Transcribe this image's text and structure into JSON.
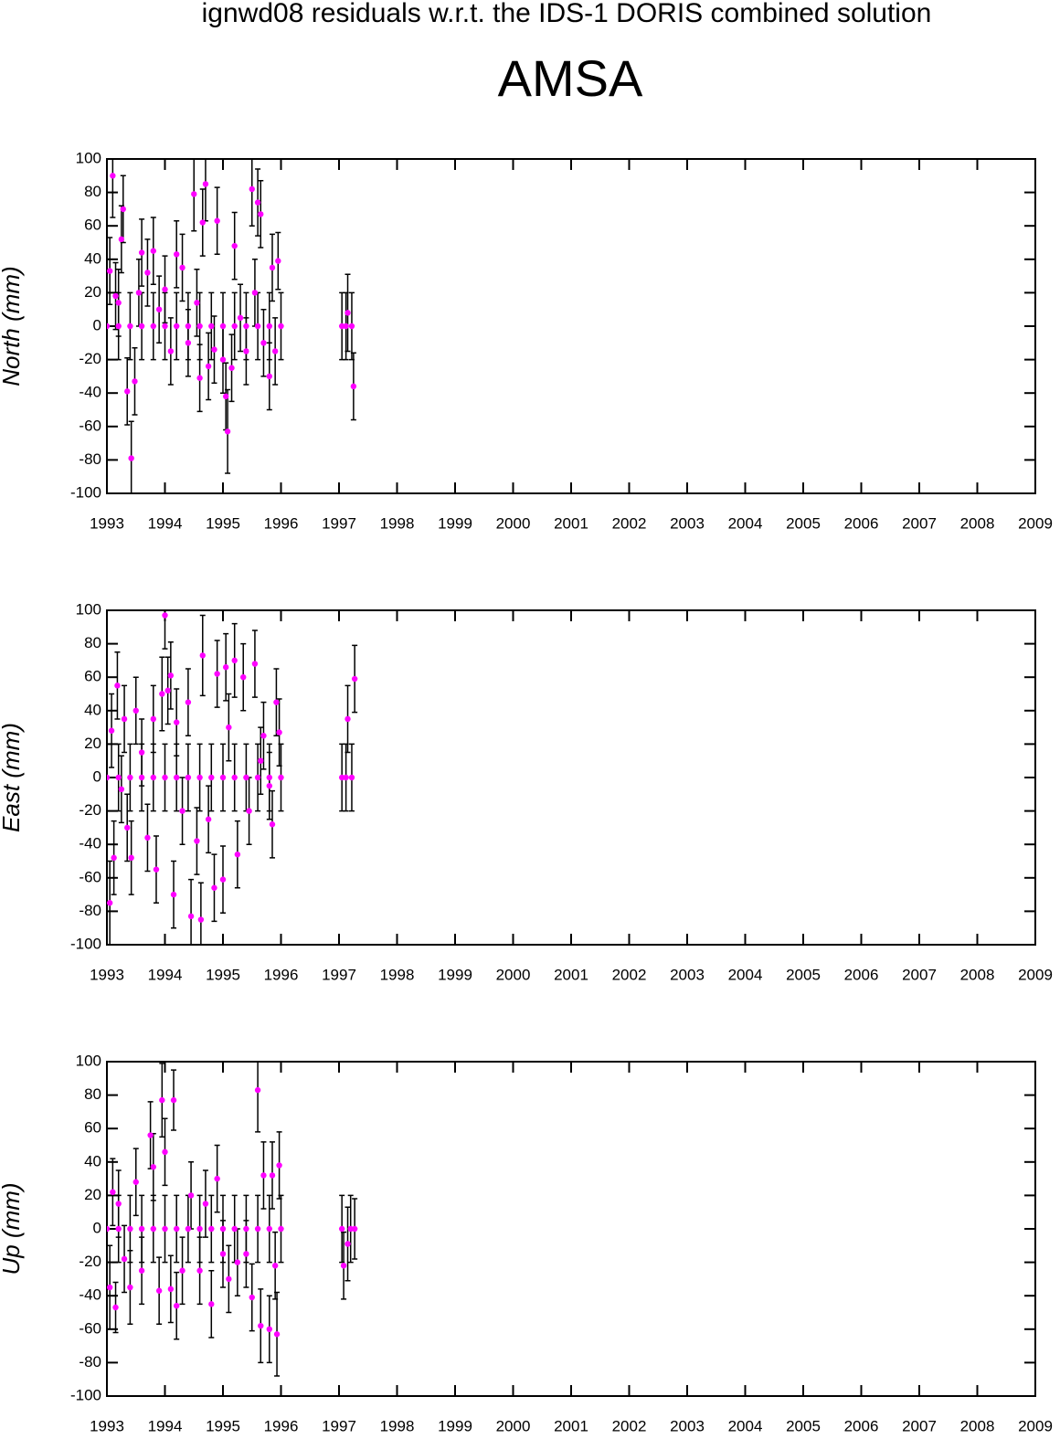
{
  "title": "ignwd08 residuals w.r.t. the IDS-1 DORIS combined solution",
  "subtitle": "AMSA",
  "chart_data": [
    {
      "type": "scatter",
      "y_label": "North (mm)",
      "color": "#ff00ff",
      "error_color": "#000000",
      "xlim": [
        1993,
        2009
      ],
      "xticks": [
        1993,
        1994,
        1995,
        1996,
        1997,
        1998,
        1999,
        2000,
        2001,
        2002,
        2003,
        2004,
        2005,
        2006,
        2007,
        2008,
        2009
      ],
      "ylim": [
        -100,
        100
      ],
      "yticks": [
        -100,
        -80,
        -60,
        -40,
        -20,
        0,
        20,
        40,
        60,
        80,
        100
      ],
      "points": [
        [
          1993.0,
          0,
          20
        ],
        [
          1993.2,
          0,
          20
        ],
        [
          1993.4,
          0,
          20
        ],
        [
          1993.6,
          0,
          20
        ],
        [
          1993.8,
          0,
          20
        ],
        [
          1994.0,
          0,
          20
        ],
        [
          1994.2,
          0,
          20
        ],
        [
          1994.4,
          0,
          20
        ],
        [
          1994.6,
          0,
          20
        ],
        [
          1994.8,
          0,
          20
        ],
        [
          1995.0,
          0,
          20
        ],
        [
          1995.2,
          0,
          20
        ],
        [
          1995.4,
          0,
          20
        ],
        [
          1995.6,
          0,
          20
        ],
        [
          1995.8,
          0,
          20
        ],
        [
          1996.0,
          0,
          20
        ],
        [
          1993.05,
          33,
          20
        ],
        [
          1993.1,
          90,
          25
        ],
        [
          1993.15,
          18,
          20
        ],
        [
          1993.2,
          14,
          20
        ],
        [
          1993.25,
          52,
          20
        ],
        [
          1993.28,
          70,
          20
        ],
        [
          1993.35,
          -39,
          20
        ],
        [
          1993.42,
          -79,
          22
        ],
        [
          1993.48,
          -33,
          20
        ],
        [
          1993.55,
          20,
          20
        ],
        [
          1993.6,
          44,
          20
        ],
        [
          1993.7,
          32,
          20
        ],
        [
          1993.8,
          45,
          20
        ],
        [
          1993.9,
          10,
          20
        ],
        [
          1994.0,
          22,
          20
        ],
        [
          1994.1,
          -15,
          20
        ],
        [
          1994.2,
          43,
          20
        ],
        [
          1994.3,
          35,
          20
        ],
        [
          1994.4,
          -10,
          20
        ],
        [
          1994.5,
          79,
          22
        ],
        [
          1994.55,
          14,
          20
        ],
        [
          1994.6,
          -31,
          20
        ],
        [
          1994.65,
          62,
          20
        ],
        [
          1994.7,
          85,
          22
        ],
        [
          1994.75,
          -24,
          20
        ],
        [
          1994.85,
          -14,
          20
        ],
        [
          1994.9,
          63,
          20
        ],
        [
          1995.0,
          -20,
          20
        ],
        [
          1995.05,
          -42,
          20
        ],
        [
          1995.08,
          -63,
          25
        ],
        [
          1995.15,
          -25,
          20
        ],
        [
          1995.2,
          48,
          20
        ],
        [
          1995.3,
          5,
          20
        ],
        [
          1995.4,
          -15,
          20
        ],
        [
          1995.5,
          82,
          22
        ],
        [
          1995.55,
          20,
          20
        ],
        [
          1995.6,
          74,
          20
        ],
        [
          1995.65,
          67,
          20
        ],
        [
          1995.7,
          -10,
          20
        ],
        [
          1995.8,
          -30,
          20
        ],
        [
          1995.85,
          35,
          20
        ],
        [
          1995.9,
          -15,
          20
        ],
        [
          1995.95,
          39,
          17
        ],
        [
          1997.05,
          0,
          20
        ],
        [
          1997.12,
          0,
          20
        ],
        [
          1997.15,
          8,
          23
        ],
        [
          1997.22,
          0,
          20
        ],
        [
          1997.25,
          -36,
          20
        ]
      ]
    },
    {
      "type": "scatter",
      "y_label": "East (mm)",
      "color": "#ff00ff",
      "error_color": "#000000",
      "xlim": [
        1993,
        2009
      ],
      "xticks": [
        1993,
        1994,
        1995,
        1996,
        1997,
        1998,
        1999,
        2000,
        2001,
        2002,
        2003,
        2004,
        2005,
        2006,
        2007,
        2008,
        2009
      ],
      "ylim": [
        -100,
        100
      ],
      "yticks": [
        -100,
        -80,
        -60,
        -40,
        -20,
        0,
        20,
        40,
        60,
        80,
        100
      ],
      "points": [
        [
          1993.0,
          0,
          20
        ],
        [
          1993.2,
          0,
          20
        ],
        [
          1993.4,
          0,
          20
        ],
        [
          1993.6,
          0,
          20
        ],
        [
          1993.8,
          0,
          20
        ],
        [
          1994.0,
          0,
          20
        ],
        [
          1994.2,
          0,
          20
        ],
        [
          1994.4,
          0,
          20
        ],
        [
          1994.6,
          0,
          20
        ],
        [
          1994.8,
          0,
          20
        ],
        [
          1995.0,
          0,
          20
        ],
        [
          1995.2,
          0,
          20
        ],
        [
          1995.4,
          0,
          20
        ],
        [
          1995.6,
          0,
          20
        ],
        [
          1995.8,
          0,
          20
        ],
        [
          1996.0,
          0,
          20
        ],
        [
          1993.05,
          -75,
          25
        ],
        [
          1993.08,
          28,
          22
        ],
        [
          1993.12,
          -48,
          22
        ],
        [
          1993.18,
          55,
          20
        ],
        [
          1993.25,
          -7,
          20
        ],
        [
          1993.3,
          35,
          20
        ],
        [
          1993.35,
          -30,
          20
        ],
        [
          1993.42,
          -48,
          22
        ],
        [
          1993.5,
          40,
          20
        ],
        [
          1993.6,
          15,
          20
        ],
        [
          1993.7,
          -36,
          20
        ],
        [
          1993.8,
          35,
          20
        ],
        [
          1993.85,
          -55,
          20
        ],
        [
          1993.95,
          50,
          22
        ],
        [
          1994.0,
          97,
          20
        ],
        [
          1994.05,
          52,
          20
        ],
        [
          1994.1,
          61,
          20
        ],
        [
          1994.15,
          -70,
          20
        ],
        [
          1994.2,
          33,
          20
        ],
        [
          1994.3,
          -20,
          20
        ],
        [
          1994.4,
          45,
          20
        ],
        [
          1994.45,
          -83,
          22
        ],
        [
          1994.55,
          -38,
          20
        ],
        [
          1994.62,
          -85,
          22
        ],
        [
          1994.65,
          73,
          24
        ],
        [
          1994.75,
          -25,
          20
        ],
        [
          1994.85,
          -66,
          20
        ],
        [
          1994.9,
          62,
          20
        ],
        [
          1995.0,
          -61,
          20
        ],
        [
          1995.05,
          66,
          20
        ],
        [
          1995.1,
          30,
          20
        ],
        [
          1995.2,
          70,
          22
        ],
        [
          1995.25,
          -46,
          20
        ],
        [
          1995.35,
          60,
          20
        ],
        [
          1995.45,
          -20,
          20
        ],
        [
          1995.55,
          68,
          20
        ],
        [
          1995.65,
          10,
          20
        ],
        [
          1995.7,
          25,
          20
        ],
        [
          1995.8,
          -5,
          20
        ],
        [
          1995.85,
          -28,
          20
        ],
        [
          1995.92,
          45,
          20
        ],
        [
          1995.97,
          27,
          20
        ],
        [
          1997.05,
          0,
          20
        ],
        [
          1997.12,
          0,
          20
        ],
        [
          1997.15,
          35,
          20
        ],
        [
          1997.22,
          0,
          20
        ],
        [
          1997.27,
          59,
          20
        ]
      ]
    },
    {
      "type": "scatter",
      "y_label": "Up (mm)",
      "color": "#ff00ff",
      "error_color": "#000000",
      "xlim": [
        1993,
        2009
      ],
      "xticks": [
        1993,
        1994,
        1995,
        1996,
        1997,
        1998,
        1999,
        2000,
        2001,
        2002,
        2003,
        2004,
        2005,
        2006,
        2007,
        2008,
        2009
      ],
      "ylim": [
        -100,
        100
      ],
      "yticks": [
        -100,
        -80,
        -60,
        -40,
        -20,
        0,
        20,
        40,
        60,
        80,
        100
      ],
      "points": [
        [
          1993.0,
          0,
          20
        ],
        [
          1993.2,
          0,
          20
        ],
        [
          1993.4,
          0,
          20
        ],
        [
          1993.6,
          0,
          20
        ],
        [
          1993.8,
          0,
          20
        ],
        [
          1994.0,
          0,
          20
        ],
        [
          1994.2,
          0,
          20
        ],
        [
          1994.4,
          0,
          20
        ],
        [
          1994.6,
          0,
          20
        ],
        [
          1994.8,
          0,
          20
        ],
        [
          1995.0,
          0,
          20
        ],
        [
          1995.2,
          0,
          20
        ],
        [
          1995.4,
          0,
          20
        ],
        [
          1995.6,
          0,
          20
        ],
        [
          1995.8,
          0,
          20
        ],
        [
          1996.0,
          0,
          20
        ],
        [
          1993.05,
          -35,
          25
        ],
        [
          1993.1,
          22,
          20
        ],
        [
          1993.15,
          -47,
          15
        ],
        [
          1993.2,
          15,
          20
        ],
        [
          1993.3,
          -18,
          20
        ],
        [
          1993.4,
          -35,
          22
        ],
        [
          1993.5,
          28,
          20
        ],
        [
          1993.6,
          -25,
          20
        ],
        [
          1993.75,
          56,
          20
        ],
        [
          1993.8,
          37,
          20
        ],
        [
          1993.9,
          -37,
          20
        ],
        [
          1993.95,
          77,
          22
        ],
        [
          1994.0,
          46,
          20
        ],
        [
          1994.1,
          -36,
          20
        ],
        [
          1994.15,
          77,
          18
        ],
        [
          1994.2,
          -46,
          20
        ],
        [
          1994.3,
          -25,
          20
        ],
        [
          1994.45,
          20,
          20
        ],
        [
          1994.6,
          -25,
          20
        ],
        [
          1994.7,
          15,
          20
        ],
        [
          1994.8,
          -45,
          20
        ],
        [
          1994.9,
          30,
          20
        ],
        [
          1995.0,
          -15,
          20
        ],
        [
          1995.1,
          -30,
          20
        ],
        [
          1995.25,
          -20,
          20
        ],
        [
          1995.4,
          -15,
          20
        ],
        [
          1995.5,
          -41,
          20
        ],
        [
          1995.6,
          83,
          25
        ],
        [
          1995.65,
          -58,
          22
        ],
        [
          1995.7,
          32,
          20
        ],
        [
          1995.8,
          -60,
          20
        ],
        [
          1995.85,
          32,
          20
        ],
        [
          1995.9,
          -22,
          20
        ],
        [
          1995.93,
          -63,
          25
        ],
        [
          1995.97,
          38,
          20
        ],
        [
          1997.05,
          0,
          20
        ],
        [
          1997.08,
          -22,
          20
        ],
        [
          1997.15,
          -9,
          22
        ],
        [
          1997.2,
          0,
          20
        ],
        [
          1997.27,
          0,
          18
        ]
      ]
    }
  ]
}
